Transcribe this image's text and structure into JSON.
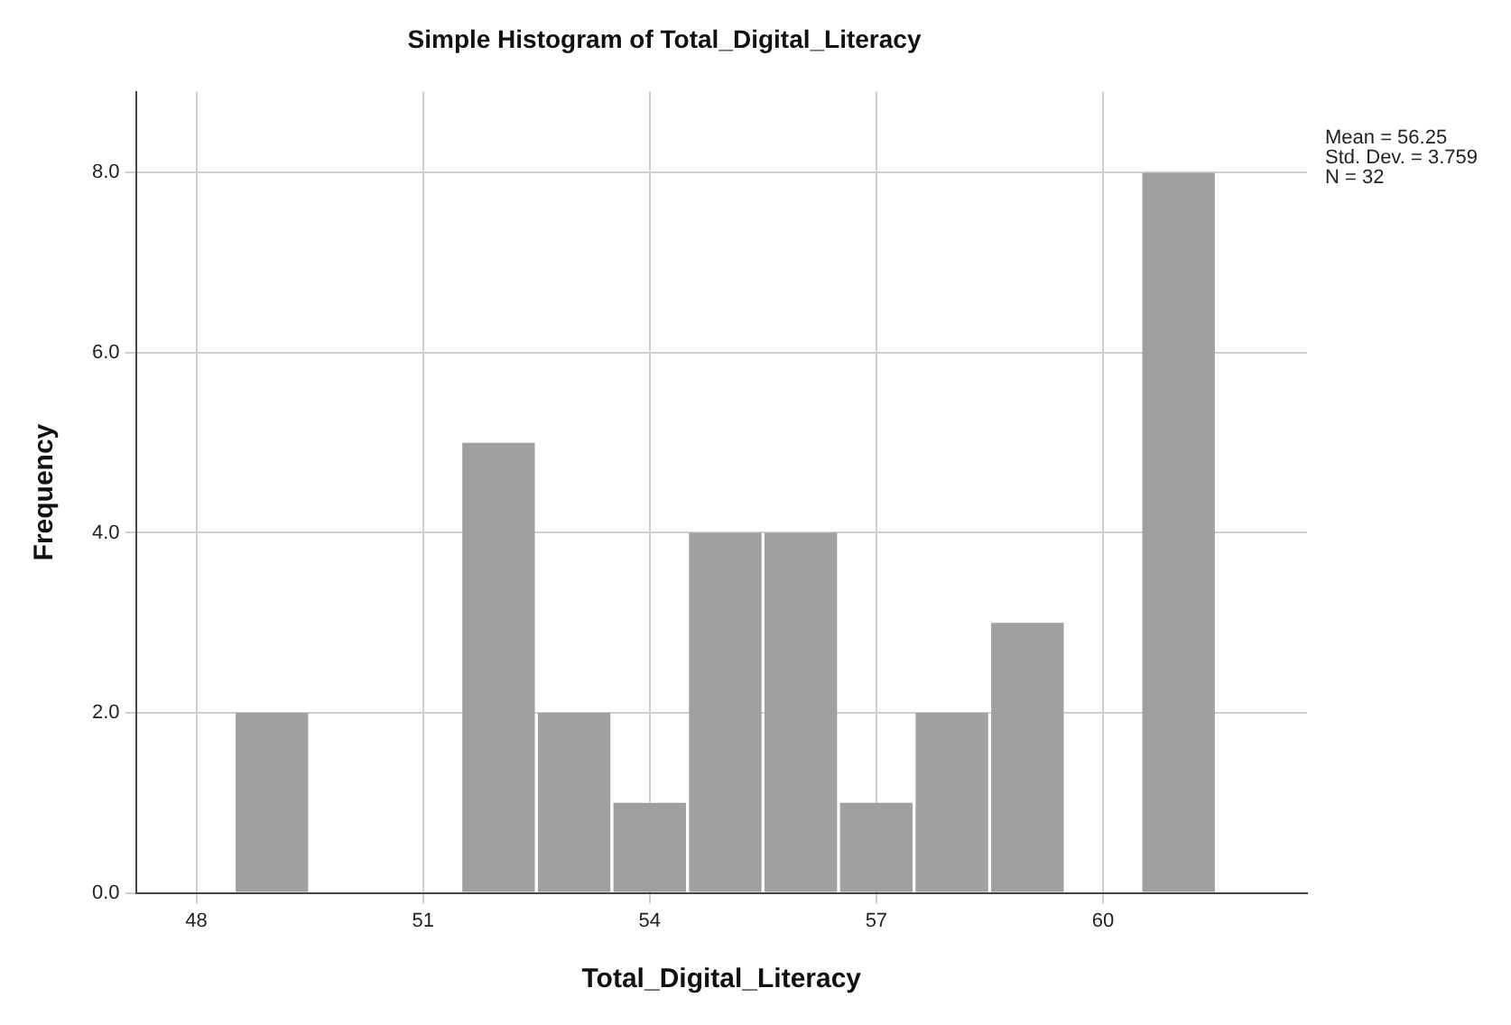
{
  "chart_data": {
    "type": "histogram",
    "title": "Simple Histogram of Total_Digital_Literacy",
    "xlabel": "Total_Digital_Literacy",
    "ylabel": "Frequency",
    "bins": [
      48.5,
      49.5,
      50.5,
      51.5,
      52.5,
      53.5,
      54.5,
      55.5,
      56.5,
      57.5,
      58.5,
      59.5,
      60.5,
      61.5
    ],
    "values": [
      2,
      0,
      0,
      5,
      2,
      1,
      4,
      4,
      1,
      2,
      3,
      0,
      8
    ],
    "color": "#a0a0a0",
    "xlim": [
      47.2,
      62.7
    ],
    "xticks": [
      48,
      51,
      54,
      57,
      60
    ],
    "ylim": [
      0,
      8.9
    ],
    "yticks": [
      {
        "value": 0,
        "label": "0.0"
      },
      {
        "value": 2,
        "label": "2.0"
      },
      {
        "value": 4,
        "label": "4.0"
      },
      {
        "value": 6,
        "label": "6.0"
      },
      {
        "value": 8,
        "label": "8.0"
      }
    ],
    "grid": true,
    "annotations": [
      "Mean = 56.25\nStd. Dev. = 3.759\nN = 32"
    ]
  }
}
